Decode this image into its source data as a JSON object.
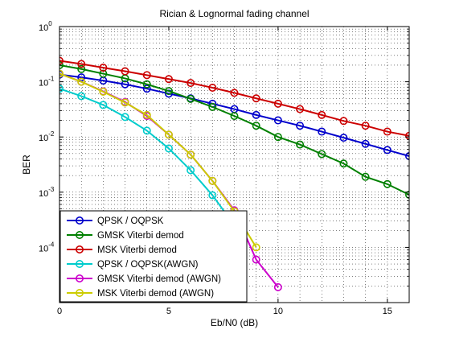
{
  "chart_data": {
    "type": "line",
    "title": "Rician & Lognormal fading channel",
    "xlabel": "Eb/N0 (dB)",
    "ylabel": "BER",
    "xlim": [
      0,
      16
    ],
    "ylim_log10": [
      -5,
      0
    ],
    "y_scale": "log",
    "grid": true,
    "legend_position": "bottom-left",
    "x_ticks": [
      "0",
      "5",
      "10",
      "15"
    ],
    "y_ticks": [
      {
        "base": "10",
        "exp": "0"
      },
      {
        "base": "10",
        "exp": "-1"
      },
      {
        "base": "10",
        "exp": "-2"
      },
      {
        "base": "10",
        "exp": "-3"
      },
      {
        "base": "10",
        "exp": "-4"
      }
    ],
    "series": [
      {
        "name": "QPSK / OQPSK",
        "color": "#0000cc",
        "x": [
          0,
          1,
          2,
          3,
          4,
          5,
          6,
          7,
          8,
          9,
          10,
          11,
          12,
          13,
          14,
          15,
          16
        ],
        "y": [
          0.135,
          0.12,
          0.105,
          0.09,
          0.075,
          0.061,
          0.05,
          0.04,
          0.032,
          0.025,
          0.02,
          0.016,
          0.0125,
          0.0097,
          0.0075,
          0.0058,
          0.0045
        ]
      },
      {
        "name": "GMSK Viterbi demod",
        "color": "#008000",
        "x": [
          0,
          1,
          2,
          3,
          4,
          5,
          6,
          7,
          8,
          9,
          10,
          11,
          12,
          13,
          14,
          15,
          16
        ],
        "y": [
          0.2,
          0.17,
          0.14,
          0.115,
          0.09,
          0.068,
          0.049,
          0.035,
          0.024,
          0.016,
          0.01,
          0.0073,
          0.0049,
          0.0033,
          0.0019,
          0.0014,
          0.0009
        ]
      },
      {
        "name": "MSK Viterbi demod",
        "color": "#cc0000",
        "x": [
          0,
          1,
          2,
          3,
          4,
          5,
          6,
          7,
          8,
          9,
          10,
          11,
          12,
          13,
          14,
          15,
          16
        ],
        "y": [
          0.24,
          0.21,
          0.18,
          0.155,
          0.132,
          0.112,
          0.095,
          0.078,
          0.063,
          0.05,
          0.04,
          0.032,
          0.025,
          0.0195,
          0.016,
          0.0125,
          0.0105
        ]
      },
      {
        "name": "QPSK / OQPSK(AWGN)",
        "color": "#00cccc",
        "x": [
          0,
          1,
          2,
          3,
          4,
          5,
          6,
          7,
          8
        ],
        "y": [
          0.075,
          0.055,
          0.038,
          0.023,
          0.013,
          0.0062,
          0.0025,
          0.00088,
          0.00025
        ]
      },
      {
        "name": "GMSK Viterbi demod (AWGN)",
        "color": "#cc00cc",
        "x": [
          0,
          1,
          2,
          3,
          4,
          5,
          6,
          7,
          8,
          9,
          10
        ],
        "y": [
          0.14,
          0.1,
          0.067,
          0.043,
          0.024,
          0.011,
          0.0048,
          0.0016,
          0.00047,
          6e-05,
          1.9e-05
        ]
      },
      {
        "name": "MSK Viterbi demod (AWGN)",
        "color": "#cccc00",
        "x": [
          0,
          1,
          2,
          3,
          4,
          5,
          6,
          7,
          8,
          9
        ],
        "y": [
          0.14,
          0.1,
          0.066,
          0.042,
          0.025,
          0.011,
          0.0048,
          0.0016,
          0.00045,
          0.0001
        ]
      }
    ]
  }
}
